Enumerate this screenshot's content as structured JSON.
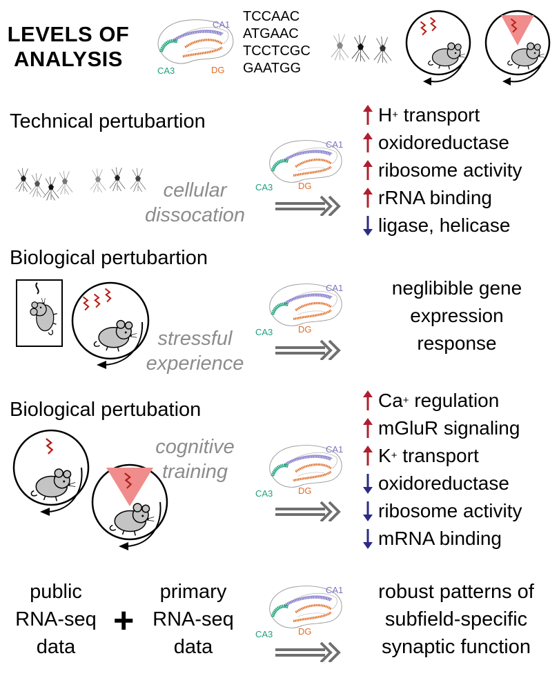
{
  "header": {
    "title_line1": "LEVELS OF",
    "title_line2": "ANALYSIS",
    "sequences": [
      "TCCAAC",
      "ATGAAC",
      "TCCTCGC",
      "GAATGG"
    ]
  },
  "hippocampus_labels": {
    "ca1": "CA1",
    "ca3": "CA3",
    "dg": "DG"
  },
  "colors": {
    "ca1": "#7a72c2",
    "ca3": "#1f9f7a",
    "dg": "#e06a24",
    "up_arrow": "#b01e2e",
    "down_arrow": "#2b2a86",
    "italic_gray": "#8c8c8c",
    "shock_red": "#e63a2e",
    "pink_cone": "#f08c8c"
  },
  "sections": [
    {
      "title": "Technical pertubartion",
      "condition": [
        "cellular",
        "dissocation"
      ],
      "results": [
        {
          "dir": "up",
          "label": "H",
          "sup": "+",
          "rest": " transport"
        },
        {
          "dir": "up",
          "label": "oxidoreductase",
          "sup": "",
          "rest": ""
        },
        {
          "dir": "up",
          "label": "ribosome activity",
          "sup": "",
          "rest": ""
        },
        {
          "dir": "up",
          "label": "rRNA binding",
          "sup": "",
          "rest": ""
        },
        {
          "dir": "down",
          "label": "ligase, helicase",
          "sup": "",
          "rest": ""
        }
      ]
    },
    {
      "title": "Biological pertubartion",
      "condition": [
        "stressful",
        "experience"
      ],
      "result_text": [
        "neglibible gene",
        "expression",
        "response"
      ]
    },
    {
      "title": "Biological pertubation",
      "condition": [
        "cognitive",
        "training"
      ],
      "results": [
        {
          "dir": "up",
          "label": "Ca",
          "sup": "+",
          "rest": " regulation"
        },
        {
          "dir": "up",
          "label": "mGluR signaling",
          "sup": "",
          "rest": ""
        },
        {
          "dir": "up",
          "label": "K",
          "sup": "+",
          "rest": " transport"
        },
        {
          "dir": "down",
          "label": "oxidoreductase",
          "sup": "",
          "rest": ""
        },
        {
          "dir": "down",
          "label": "ribosome activity",
          "sup": "",
          "rest": ""
        },
        {
          "dir": "down",
          "label": "mRNA binding",
          "sup": "",
          "rest": ""
        }
      ]
    }
  ],
  "bottom": {
    "left": [
      "public",
      "RNA-seq",
      "data"
    ],
    "plus": "+",
    "middle": [
      "primary",
      "RNA-seq",
      "data"
    ],
    "result_text": [
      "robust patterns of",
      "subfield-specific",
      "synaptic function"
    ]
  }
}
